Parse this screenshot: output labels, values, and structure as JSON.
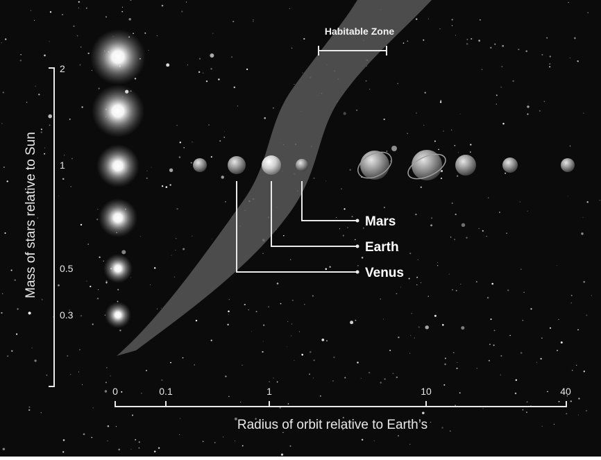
{
  "diagram": {
    "habitable_zone_label": "Habitable Zone",
    "x_axis": {
      "title": "Radius of orbit relative to Earth’s",
      "ticks": [
        "0",
        "0.1",
        "1",
        "10",
        "40"
      ]
    },
    "y_axis": {
      "title": "Mass of stars relative to Sun",
      "ticks": [
        "2",
        "1",
        "0.5",
        "0.3"
      ]
    },
    "stars": [
      {
        "mass": 2
      },
      {
        "mass": 1.5
      },
      {
        "mass": 1
      },
      {
        "mass": 0.7
      },
      {
        "mass": 0.5
      },
      {
        "mass": 0.3
      }
    ],
    "planets": [
      {
        "name": "",
        "ringed": false
      },
      {
        "name": "Venus",
        "ringed": false
      },
      {
        "name": "Earth",
        "ringed": false
      },
      {
        "name": "Mars",
        "ringed": false
      },
      {
        "name": "",
        "ringed": true
      },
      {
        "name": "",
        "ringed": true
      },
      {
        "name": "",
        "ringed": false
      },
      {
        "name": "",
        "ringed": false
      },
      {
        "name": "",
        "ringed": false
      }
    ],
    "colors": {
      "background": "#0b0b0b",
      "habitable_band": "#585858",
      "axis": "#eaeaea",
      "text": "#ffffff"
    }
  }
}
